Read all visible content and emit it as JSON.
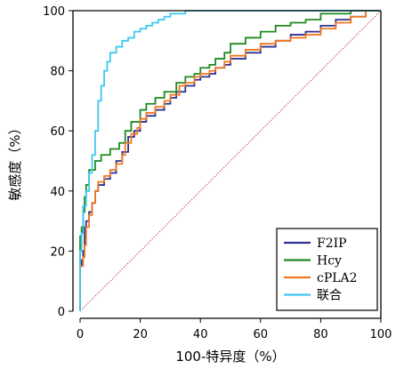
{
  "chart_data": {
    "type": "line",
    "title": "",
    "xlabel": "100-特异度（%）",
    "ylabel": "敏感度（%）",
    "xlim": [
      0,
      100
    ],
    "ylim": [
      0,
      100
    ],
    "xticks": [
      "0",
      "20",
      "40",
      "60",
      "80",
      "100"
    ],
    "yticks": [
      "0",
      "20",
      "40",
      "60",
      "80",
      "100"
    ],
    "grid": false,
    "legend_position": "bottom-right",
    "reference_line": {
      "from": [
        0,
        0
      ],
      "to": [
        100,
        100
      ],
      "color": "#c0504d",
      "style": "dotted"
    },
    "series": [
      {
        "name": "F2IP",
        "color": "#2e3192",
        "points": [
          [
            0,
            0
          ],
          [
            0.5,
            15
          ],
          [
            1,
            17
          ],
          [
            1.5,
            20
          ],
          [
            2,
            28
          ],
          [
            3,
            30
          ],
          [
            4,
            33
          ],
          [
            5,
            36
          ],
          [
            6,
            40
          ],
          [
            8,
            42
          ],
          [
            10,
            44
          ],
          [
            12,
            46
          ],
          [
            14,
            50
          ],
          [
            16,
            53
          ],
          [
            18,
            58
          ],
          [
            20,
            60
          ],
          [
            22,
            63
          ],
          [
            25,
            65
          ],
          [
            28,
            67
          ],
          [
            30,
            69
          ],
          [
            32,
            71
          ],
          [
            35,
            73
          ],
          [
            38,
            75
          ],
          [
            40,
            77
          ],
          [
            43,
            78
          ],
          [
            45,
            79
          ],
          [
            48,
            81
          ],
          [
            50,
            82
          ],
          [
            55,
            84
          ],
          [
            60,
            86
          ],
          [
            65,
            88
          ],
          [
            70,
            90
          ],
          [
            75,
            92
          ],
          [
            80,
            93
          ],
          [
            85,
            95
          ],
          [
            90,
            97
          ],
          [
            95,
            98
          ],
          [
            100,
            100
          ]
        ]
      },
      {
        "name": "Hcy",
        "color": "#1e8a1e",
        "points": [
          [
            0,
            0
          ],
          [
            0.5,
            25
          ],
          [
            1,
            28
          ],
          [
            1.5,
            33
          ],
          [
            2,
            38
          ],
          [
            3,
            42
          ],
          [
            5,
            47
          ],
          [
            7,
            50
          ],
          [
            10,
            52
          ],
          [
            13,
            54
          ],
          [
            15,
            56
          ],
          [
            17,
            60
          ],
          [
            20,
            63
          ],
          [
            22,
            67
          ],
          [
            25,
            69
          ],
          [
            28,
            71
          ],
          [
            32,
            73
          ],
          [
            35,
            76
          ],
          [
            38,
            78
          ],
          [
            40,
            79
          ],
          [
            43,
            81
          ],
          [
            45,
            82
          ],
          [
            48,
            84
          ],
          [
            50,
            86
          ],
          [
            55,
            89
          ],
          [
            60,
            91
          ],
          [
            65,
            93
          ],
          [
            70,
            95
          ],
          [
            75,
            96
          ],
          [
            80,
            97
          ],
          [
            83,
            99
          ],
          [
            90,
            99
          ],
          [
            95,
            100
          ],
          [
            100,
            100
          ]
        ]
      },
      {
        "name": "cPLA2",
        "color": "#f07820",
        "points": [
          [
            0,
            0
          ],
          [
            1,
            15
          ],
          [
            1.5,
            18
          ],
          [
            2,
            22
          ],
          [
            3,
            28
          ],
          [
            4,
            32
          ],
          [
            5,
            36
          ],
          [
            6,
            40
          ],
          [
            8,
            43
          ],
          [
            10,
            45
          ],
          [
            12,
            47
          ],
          [
            14,
            49
          ],
          [
            15,
            52
          ],
          [
            17,
            56
          ],
          [
            19,
            59
          ],
          [
            20,
            61
          ],
          [
            22,
            64
          ],
          [
            25,
            66
          ],
          [
            28,
            68
          ],
          [
            30,
            70
          ],
          [
            33,
            72
          ],
          [
            35,
            75
          ],
          [
            38,
            76
          ],
          [
            40,
            78
          ],
          [
            43,
            79
          ],
          [
            45,
            80
          ],
          [
            48,
            81
          ],
          [
            50,
            83
          ],
          [
            55,
            85
          ],
          [
            60,
            87
          ],
          [
            65,
            89
          ],
          [
            70,
            90
          ],
          [
            75,
            91
          ],
          [
            80,
            92
          ],
          [
            85,
            94
          ],
          [
            90,
            96
          ],
          [
            95,
            98
          ],
          [
            100,
            100
          ]
        ]
      },
      {
        "name": "联合",
        "color": "#3ec8f0",
        "points": [
          [
            0,
            0
          ],
          [
            0.5,
            20
          ],
          [
            1,
            26
          ],
          [
            2,
            35
          ],
          [
            3,
            40
          ],
          [
            4,
            46
          ],
          [
            5,
            52
          ],
          [
            6,
            60
          ],
          [
            7,
            70
          ],
          [
            8,
            75
          ],
          [
            9,
            80
          ],
          [
            10,
            83
          ],
          [
            12,
            86
          ],
          [
            14,
            88
          ],
          [
            16,
            90
          ],
          [
            18,
            91
          ],
          [
            20,
            93
          ],
          [
            22,
            94
          ],
          [
            24,
            95
          ],
          [
            26,
            96
          ],
          [
            28,
            97
          ],
          [
            30,
            98
          ],
          [
            35,
            99
          ],
          [
            40,
            100
          ],
          [
            100,
            100
          ]
        ]
      }
    ]
  }
}
